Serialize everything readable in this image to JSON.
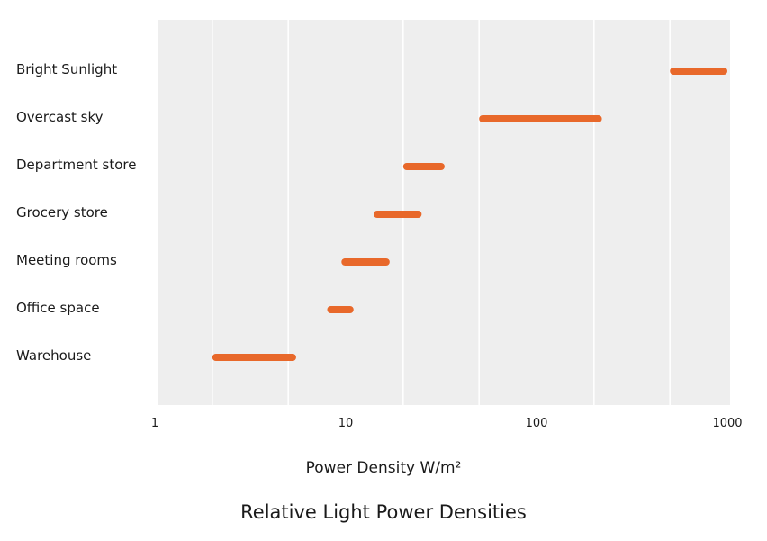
{
  "chart_data": {
    "type": "range-bar",
    "title": "Relative Light Power Densities",
    "xlabel": "Power Density W/m²",
    "x_scale": "log",
    "xlim": [
      1,
      1000
    ],
    "x_ticks": [
      {
        "value": 1,
        "label": "1"
      },
      {
        "value": 10,
        "label": "10"
      },
      {
        "value": 100,
        "label": "100"
      },
      {
        "value": 1000,
        "label": "1000"
      }
    ],
    "grid": true,
    "bar_color": "#e8682a",
    "plot_background": "#eeeeee",
    "categories": [
      "Bright Sunlight",
      "Overcast sky",
      "Department store",
      "Grocery store",
      "Meeting rooms",
      "Office space",
      "Warehouse"
    ],
    "ranges": [
      [
        500,
        1000
      ],
      [
        50,
        220
      ],
      [
        20,
        33
      ],
      [
        14,
        25
      ],
      [
        9.5,
        17
      ],
      [
        8,
        11
      ],
      [
        2,
        5.5
      ]
    ]
  }
}
